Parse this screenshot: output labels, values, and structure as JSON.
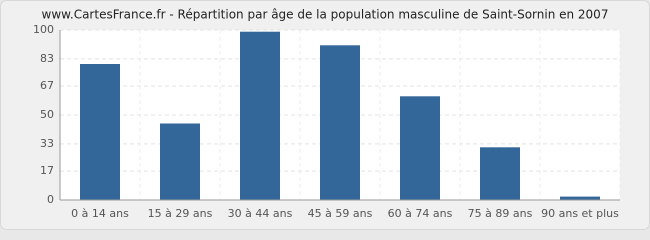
{
  "chart_data": {
    "type": "bar",
    "title": "www.CartesFrance.fr - Répartition par âge de la population masculine de Saint-Sornin en 2007",
    "categories": [
      "0 à 14 ans",
      "15 à 29 ans",
      "30 à 44 ans",
      "45 à 59 ans",
      "60 à 74 ans",
      "75 à 89 ans",
      "90 ans et plus"
    ],
    "values": [
      80,
      45,
      99,
      91,
      61,
      31,
      2
    ],
    "color": "#336699",
    "ylim": [
      0,
      100
    ],
    "yticks": [
      0,
      17,
      33,
      50,
      67,
      83,
      100
    ],
    "grid": true
  }
}
